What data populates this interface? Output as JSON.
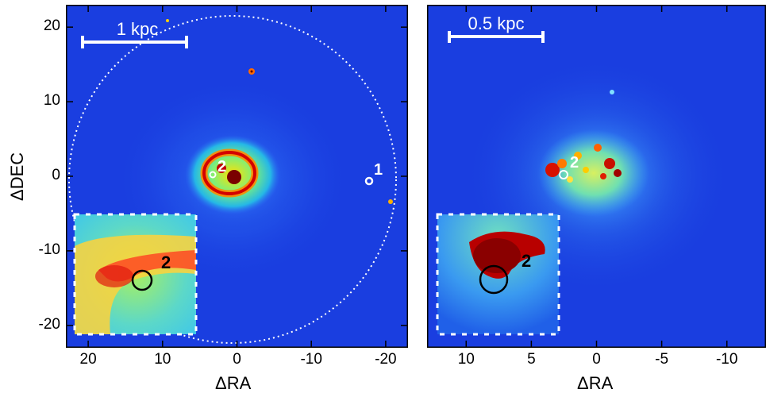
{
  "panels": [
    {
      "id": "left",
      "scale_bar_label": "1 kpc",
      "x_axis_title": "ΔRA",
      "y_axis_title": "ΔDEC",
      "x_range": [
        23,
        -23
      ],
      "y_range": [
        -23,
        23
      ],
      "x_ticks": [
        20,
        10,
        0,
        -10,
        -20
      ],
      "y_ticks": [
        20,
        10,
        0,
        -10,
        -20
      ],
      "source_labels": [
        "2",
        "1"
      ],
      "inset_label": "2"
    },
    {
      "id": "right",
      "scale_bar_label": "0.5 kpc",
      "x_axis_title": "ΔRA",
      "x_range": [
        13,
        -13
      ],
      "y_range": [
        -11,
        11
      ],
      "x_ticks": [
        10,
        5,
        0,
        -5,
        -10
      ],
      "source_labels": [
        "2"
      ],
      "inset_label": "2"
    }
  ],
  "colors": {
    "map_background": "#1a3ee0",
    "core_hot": "#9a0000",
    "frame": "#000000",
    "annotation": "#ffffff"
  }
}
